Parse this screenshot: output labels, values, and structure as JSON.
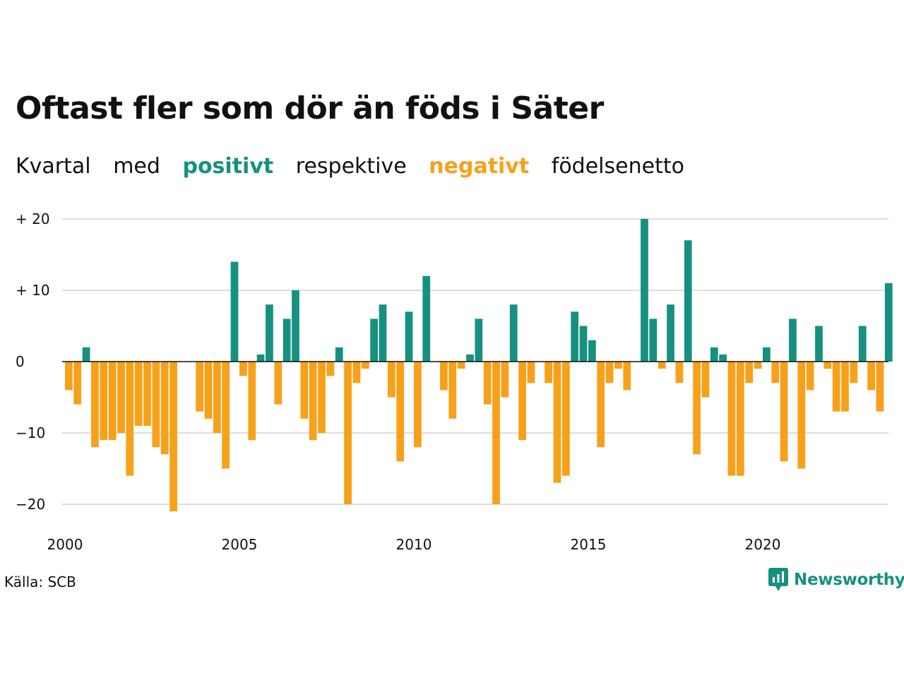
{
  "title": "Oftast fler som dör än föds i Säter",
  "subtitle": {
    "part1": "Kvartal",
    "part2": "med",
    "positive_word": "positivt",
    "part3": "respektive",
    "negative_word": "negativt",
    "part4": "födelsenetto"
  },
  "source": "Källa: SCB",
  "brand": {
    "name": "Newsworthy",
    "icon": "newsworthy-logo-icon"
  },
  "colors": {
    "positive": "#16917F",
    "negative": "#F7A11A",
    "grid": "#dddddd",
    "zero_line": "#111111"
  },
  "chart_data": {
    "type": "bar",
    "title": "Oftast fler som dör än föds i Säter",
    "xlabel": "",
    "ylabel": "",
    "ylim": [
      -21,
      20
    ],
    "xlim": [
      2000,
      2023.75
    ],
    "grid": true,
    "y_ticks": [
      {
        "value": 20,
        "label": "+ 20"
      },
      {
        "value": 10,
        "label": "+ 10"
      },
      {
        "value": 0,
        "label": "0"
      },
      {
        "value": -10,
        "label": "−10"
      },
      {
        "value": -20,
        "label": "−20"
      }
    ],
    "x_ticks": [
      {
        "value": 2000,
        "label": "2000"
      },
      {
        "value": 2005,
        "label": "2005"
      },
      {
        "value": 2010,
        "label": "2010"
      },
      {
        "value": 2015,
        "label": "2015"
      },
      {
        "value": 2020,
        "label": "2020"
      }
    ],
    "start_year": 2000,
    "periods_per_year": 4,
    "values": [
      -4,
      -6,
      2,
      -12,
      -11,
      -11,
      -10,
      -16,
      -9,
      -9,
      -12,
      -13,
      -21,
      0,
      0,
      -7,
      -8,
      -10,
      -15,
      14,
      -2,
      -11,
      1,
      8,
      -6,
      6,
      10,
      -8,
      -11,
      -10,
      -2,
      2,
      -20,
      -3,
      -1,
      6,
      8,
      -5,
      -14,
      7,
      -12,
      12,
      0,
      -4,
      -8,
      -1,
      1,
      6,
      -6,
      -20,
      -5,
      8,
      -11,
      -3,
      0,
      -3,
      -17,
      -16,
      7,
      5,
      3,
      -12,
      -3,
      -1,
      -4,
      0,
      20,
      6,
      -1,
      8,
      -3,
      17,
      -13,
      -5,
      2,
      1,
      -16,
      -16,
      -3,
      -1,
      2,
      -3,
      -14,
      6,
      -15,
      -4,
      5,
      -1,
      -7,
      -7,
      -3,
      5,
      -4,
      -7,
      11
    ]
  }
}
